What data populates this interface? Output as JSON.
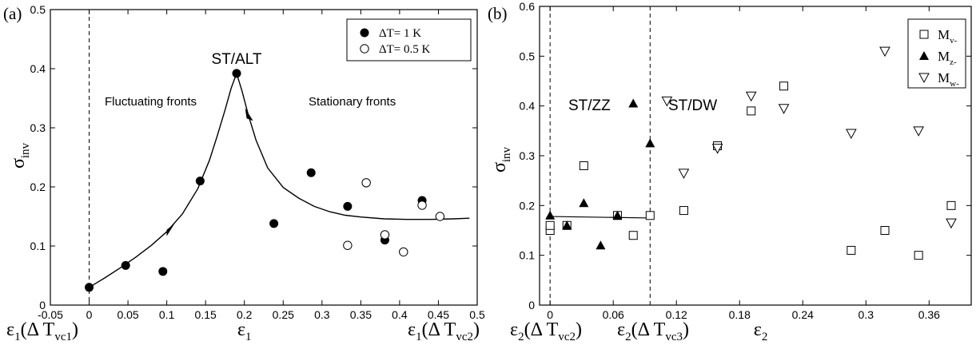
{
  "chart_data": [
    {
      "type": "scatter",
      "panel_label": "(a)",
      "xlabel": "ε1",
      "ylabel": "σinv",
      "xlim": [
        -0.05,
        0.5
      ],
      "ylim": [
        0,
        0.5
      ],
      "x_ticks": [
        "-0.05",
        "0",
        "0.05",
        "0.1",
        "0.15",
        "0.2",
        "0.25",
        "0.3",
        "0.35",
        "0.4",
        "0.45",
        "0.5"
      ],
      "y_ticks": [
        "0",
        "0.1",
        "0.2",
        "0.3",
        "0.4",
        "0.5"
      ],
      "vertical_line_x": 0,
      "bottom_labels": [
        {
          "base": "ε",
          "sub1": "1",
          "paren": "(Δ T",
          "sub2": "vc1",
          "close": ")",
          "x": 0
        },
        {
          "base": "ε",
          "sub1": "1",
          "paren": "(Δ T",
          "sub2": "vc2",
          "close": ")",
          "x": 0.45
        }
      ],
      "annotations": {
        "peak": "ST/ALT",
        "left_region": "Fluctuating fronts",
        "right_region": "Stationary fronts"
      },
      "legend_position": "top-right",
      "series": [
        {
          "name": "ΔT= 1 K",
          "marker": "filled-circle",
          "x": [
            0,
            0.047,
            0.095,
            0.143,
            0.19,
            0.238,
            0.286,
            0.333,
            0.381,
            0.429
          ],
          "y": [
            0.03,
            0.067,
            0.057,
            0.21,
            0.392,
            0.138,
            0.224,
            0.167,
            0.11,
            0.177
          ]
        },
        {
          "name": "ΔT= 0.5 K",
          "marker": "open-circle",
          "x": [
            0.333,
            0.357,
            0.381,
            0.405,
            0.429,
            0.452
          ],
          "y": [
            0.101,
            0.207,
            0.119,
            0.09,
            0.169,
            0.15
          ]
        }
      ],
      "curve": {
        "x": [
          0,
          0.02,
          0.04,
          0.06,
          0.08,
          0.1,
          0.12,
          0.14,
          0.155,
          0.165,
          0.175,
          0.183,
          0.19,
          0.197,
          0.205,
          0.215,
          0.23,
          0.25,
          0.27,
          0.29,
          0.31,
          0.33,
          0.35,
          0.38,
          0.41,
          0.44,
          0.47,
          0.49
        ],
        "y": [
          0.03,
          0.046,
          0.063,
          0.081,
          0.101,
          0.124,
          0.154,
          0.197,
          0.245,
          0.286,
          0.33,
          0.367,
          0.392,
          0.362,
          0.322,
          0.279,
          0.232,
          0.199,
          0.181,
          0.167,
          0.158,
          0.152,
          0.149,
          0.146,
          0.145,
          0.145,
          0.146,
          0.147
        ]
      },
      "arrows": [
        {
          "x": 0.105,
          "y": 0.13,
          "dir": "up-right"
        },
        {
          "x": 0.205,
          "y": 0.32,
          "dir": "down-right"
        }
      ]
    },
    {
      "type": "scatter",
      "panel_label": "(b)",
      "xlabel": "ε2",
      "ylabel": "σinv",
      "xlim": [
        -0.01,
        0.4
      ],
      "ylim": [
        0,
        0.6
      ],
      "x_ticks": [
        "0",
        "0.06",
        "0.12",
        "0.18",
        "0.24",
        "0.3",
        "0.36"
      ],
      "x_tick_values": [
        0,
        0.06,
        0.12,
        0.18,
        0.24,
        0.3,
        0.36
      ],
      "y_ticks": [
        "0",
        "0.1",
        "0.2",
        "0.3",
        "0.4",
        "0.5",
        "0.6"
      ],
      "vertical_lines_x": [
        0,
        0.095
      ],
      "bottom_labels": [
        {
          "base": "ε",
          "sub1": "2",
          "paren": "(Δ T",
          "sub2": "vc2",
          "close": ")",
          "x": 0
        },
        {
          "base": "ε",
          "sub1": "2",
          "paren": "(Δ T",
          "sub2": "vc3",
          "close": ")",
          "x": 0.095
        }
      ],
      "annotations": {
        "left_region": "ST/ZZ",
        "right_region": "ST/DW"
      },
      "legend_position": "top-right",
      "series": [
        {
          "name": "M",
          "sub": "v-",
          "marker": "open-square",
          "x": [
            0,
            0,
            0.016,
            0.032,
            0.064,
            0.079,
            0.095,
            0.127,
            0.159,
            0.191,
            0.222,
            0.286,
            0.318,
            0.35,
            0.381
          ],
          "y": [
            0.15,
            0.16,
            0.16,
            0.28,
            0.18,
            0.14,
            0.18,
            0.19,
            0.32,
            0.39,
            0.44,
            0.11,
            0.15,
            0.1,
            0.2
          ]
        },
        {
          "name": "M",
          "sub": "z-",
          "marker": "filled-triangle",
          "x": [
            0,
            0.016,
            0.032,
            0.048,
            0.064,
            0.079,
            0.095
          ],
          "y": [
            0.18,
            0.16,
            0.205,
            0.12,
            0.18,
            0.405,
            0.325
          ]
        },
        {
          "name": "M",
          "sub": "w-",
          "marker": "open-triangle-down",
          "x": [
            0.111,
            0.127,
            0.159,
            0.191,
            0.222,
            0.286,
            0.318,
            0.35,
            0.381
          ],
          "y": [
            0.41,
            0.265,
            0.315,
            0.42,
            0.395,
            0.345,
            0.51,
            0.35,
            0.165
          ]
        }
      ],
      "fit_line": {
        "x": [
          0,
          0.095
        ],
        "y": [
          0.178,
          0.175
        ]
      }
    }
  ]
}
